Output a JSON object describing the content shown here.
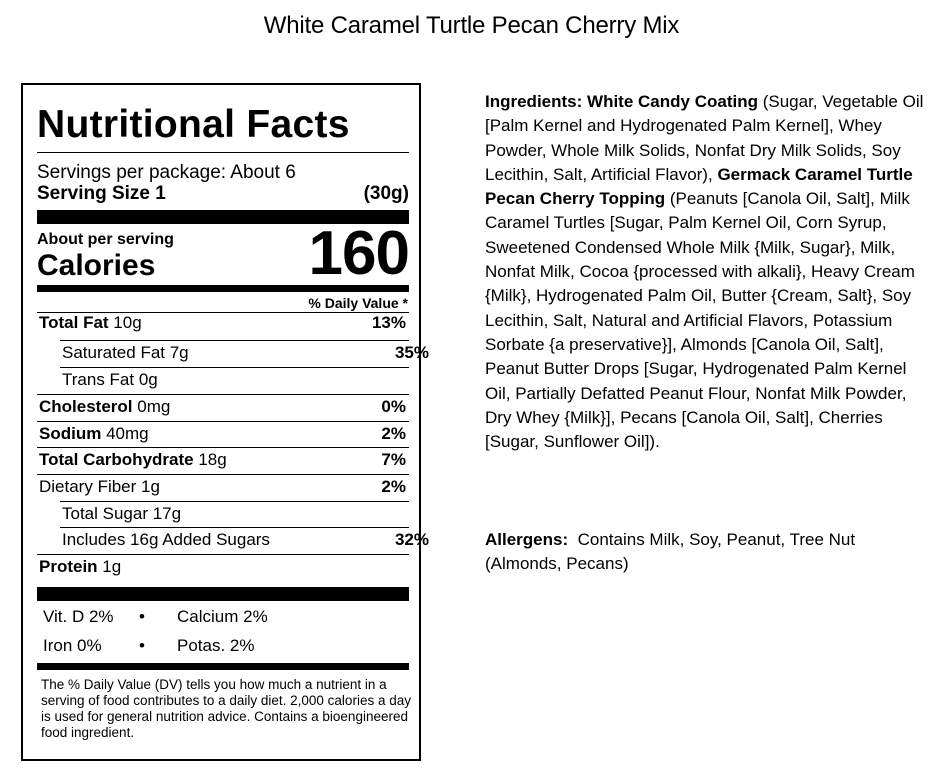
{
  "page_title": "White Caramel Turtle Pecan Cherry Mix",
  "label": {
    "title": "Nutritional Facts",
    "servings_per_package": "Servings per package: About 6",
    "serving_size_label": "Serving Size 1",
    "serving_size_value": "(30g)",
    "about_per_serving": "About per serving",
    "calories_label": "Calories",
    "calories_value": "160",
    "dv_header": "% Daily Value *",
    "nutrients": [
      {
        "bold": "Total Fat",
        "rest": " 10g",
        "dv": "13%"
      },
      {
        "bold": "",
        "rest": "Saturated Fat 7g",
        "dv": "35%"
      },
      {
        "bold": "",
        "rest": "Trans Fat 0g",
        "dv": ""
      },
      {
        "bold": "Cholesterol",
        "rest": " 0mg",
        "dv": "0%"
      },
      {
        "bold": "Sodium",
        "rest": " 40mg",
        "dv": "2%"
      },
      {
        "bold": "Total Carbohydrate",
        "rest": " 18g",
        "dv": "7%"
      },
      {
        "bold": "",
        "rest": "Dietary Fiber 1g",
        "dv": "2%"
      },
      {
        "bold": "",
        "rest": "Total Sugar 17g",
        "dv": ""
      },
      {
        "bold": "",
        "rest": "Includes 16g Added Sugars",
        "dv": "32%"
      },
      {
        "bold": "Protein",
        "rest": " 1g",
        "dv": ""
      }
    ],
    "vitamins": {
      "vit_d": "Vit. D 2%",
      "calcium": "Calcium 2%",
      "iron": "Iron 0%",
      "potassium": "Potas. 2%",
      "bullet": "•"
    },
    "footnote": "The % Daily Value (DV) tells you how much a nutrient in a serving of food contributes to a daily diet. 2,000 calories a day is used for general nutrition advice. Contains a bioengineered food ingredient."
  },
  "ingredients": {
    "label": "Ingredients:",
    "coating_name": "White Candy Coating",
    "coating_text": " (Sugar, Vegetable Oil [Palm Kernel and Hydrogenated Palm Kernel], Whey Powder, Whole Milk Solids, Nonfat Dry Milk Solids, Soy Lecithin, Salt, Artificial Flavor),",
    "topping_name": "Germack Caramel Turtle Pecan Cherry Topping",
    "topping_text": " (Peanuts [Canola Oil, Salt], Milk Caramel Turtles [Sugar, Palm Kernel Oil, Corn Syrup, Sweetened Condensed Whole Milk {Milk, Sugar}, Milk, Nonfat Milk, Cocoa {processed with alkali}, Heavy Cream {Milk}, Hydrogenated Palm Oil, Butter {Cream, Salt}, Soy Lecithin, Salt, Natural and Artificial Flavors, Potassium Sorbate {a preservative}], Almonds [Canola Oil, Salt], Peanut Butter Drops [Sugar, Hydrogenated Palm Kernel Oil, Partially Defatted Peanut Flour, Nonfat Milk Powder, Dry Whey {Milk}], Pecans [Canola Oil, Salt], Cherries [Sugar, Sunflower Oil])."
  },
  "allergens": {
    "label": "Allergens:",
    "text": "Contains Milk, Soy, Peanut, Tree Nut (Almonds, Pecans)"
  }
}
